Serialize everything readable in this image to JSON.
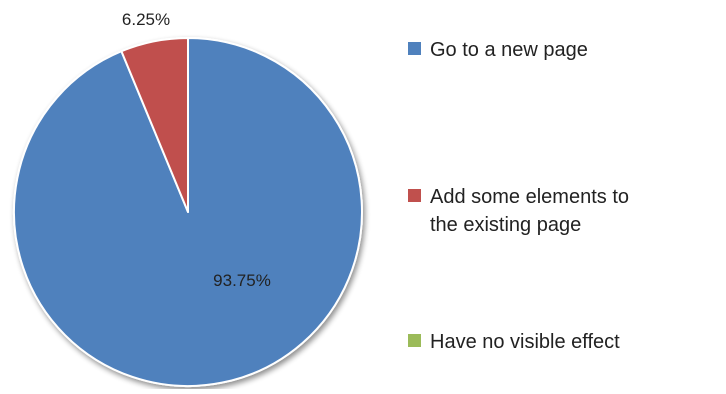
{
  "chart_data": {
    "type": "pie",
    "title": "",
    "start_angle_deg": 90,
    "direction": "clockwise",
    "slices": [
      {
        "label": "Go to a new page",
        "value": 93.75,
        "data_label": "93.75%",
        "color": "#4f81bd"
      },
      {
        "label": "Add some elements to the existing page",
        "value": 6.25,
        "data_label": "6.25%",
        "color": "#c0504d"
      },
      {
        "label": "Have no visible effect",
        "value": 0,
        "data_label": "",
        "color": "#9bbb59"
      }
    ],
    "legend": {
      "placement": "right",
      "entries": [
        {
          "lines": [
            "Go to a new page"
          ],
          "color": "#4f81bd"
        },
        {
          "lines": [
            "Add some elements to",
            "the existing page"
          ],
          "color": "#c0504d"
        },
        {
          "lines": [
            "Have no visible effect"
          ],
          "color": "#9bbb59"
        }
      ]
    }
  }
}
